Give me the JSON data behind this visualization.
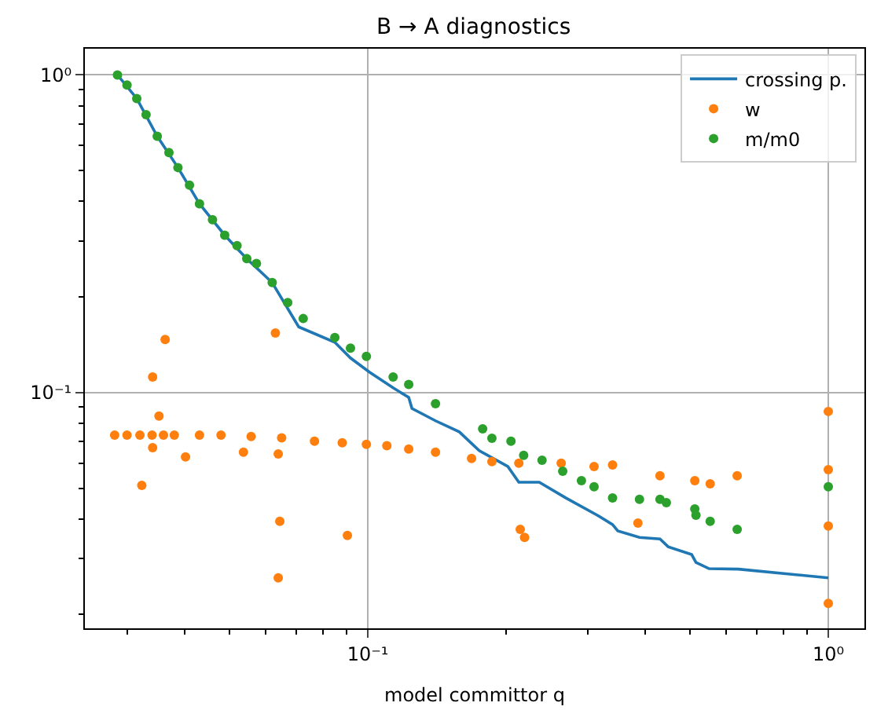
{
  "chart_data": {
    "type": "scatter",
    "title": "B → A diagnostics",
    "xlabel": "model committor q",
    "log": "xy",
    "grid": true,
    "legend": "top right",
    "xlim": [
      0.0243,
      1.198
    ],
    "ylim": [
      0.0181,
      1.21
    ],
    "xticks": [
      {
        "value": 0.1,
        "label": "10⁻¹"
      },
      {
        "value": 1,
        "label": "10⁰"
      },
      {
        "value": 0.03,
        "label": null
      },
      {
        "value": 0.04,
        "label": null
      },
      {
        "value": 0.05,
        "label": null
      },
      {
        "value": 0.06,
        "label": null
      },
      {
        "value": 0.07,
        "label": null
      },
      {
        "value": 0.08,
        "label": null
      },
      {
        "value": 0.09,
        "label": null
      },
      {
        "value": 0.2,
        "label": null
      },
      {
        "value": 0.3,
        "label": null
      },
      {
        "value": 0.4,
        "label": null
      },
      {
        "value": 0.5,
        "label": null
      },
      {
        "value": 0.6,
        "label": null
      },
      {
        "value": 0.7,
        "label": null
      },
      {
        "value": 0.8,
        "label": null
      },
      {
        "value": 0.9,
        "label": null
      }
    ],
    "yticks": [
      {
        "value": 0.1,
        "label": "10⁻¹"
      },
      {
        "value": 1,
        "label": "10⁰"
      },
      {
        "value": 0.02,
        "label": null
      },
      {
        "value": 0.03,
        "label": null
      },
      {
        "value": 0.04,
        "label": null
      },
      {
        "value": 0.05,
        "label": null
      },
      {
        "value": 0.06,
        "label": null
      },
      {
        "value": 0.07,
        "label": null
      },
      {
        "value": 0.08,
        "label": null
      },
      {
        "value": 0.09,
        "label": null
      },
      {
        "value": 0.2,
        "label": null
      },
      {
        "value": 0.3,
        "label": null
      },
      {
        "value": 0.4,
        "label": null
      },
      {
        "value": 0.5,
        "label": null
      },
      {
        "value": 0.6,
        "label": null
      },
      {
        "value": 0.7,
        "label": null
      },
      {
        "value": 0.8,
        "label": null
      },
      {
        "value": 0.9,
        "label": null
      }
    ],
    "series": [
      {
        "name": "crossing p.",
        "type": "line",
        "marker": "none",
        "line_style": "solid",
        "color": "#1f77b4",
        "x": [
          0.0286,
          0.0315,
          0.0349,
          0.0387,
          0.0431,
          0.0489,
          0.0546,
          0.062,
          0.0708,
          0.0848,
          0.0917,
          0.1008,
          0.1135,
          0.1227,
          0.1247,
          0.1403,
          0.158,
          0.1746,
          0.2014,
          0.2128,
          0.2357,
          0.269,
          0.315,
          0.34,
          0.349,
          0.389,
          0.431,
          0.449,
          0.505,
          0.516,
          0.551,
          0.638,
          1.0
        ],
        "values": [
          1.0,
          0.843,
          0.641,
          0.511,
          0.393,
          0.313,
          0.264,
          0.222,
          0.161,
          0.144,
          0.1285,
          0.116,
          0.1035,
          0.0966,
          0.0891,
          0.0815,
          0.0752,
          0.0656,
          0.0585,
          0.0522,
          0.0522,
          0.0466,
          0.0411,
          0.0384,
          0.0367,
          0.035,
          0.0346,
          0.0327,
          0.0309,
          0.0292,
          0.0279,
          0.0278,
          0.0261
        ]
      },
      {
        "name": "w",
        "marker": "circle",
        "color": "#ff7f0e",
        "x": [
          0.0282,
          0.03,
          0.032,
          0.034,
          0.036,
          0.038,
          0.0431,
          0.048,
          0.0558,
          0.065,
          0.0766,
          0.088,
          0.0993,
          0.11,
          0.1227,
          0.1403,
          0.168,
          0.186,
          0.2128,
          0.263,
          0.31,
          0.34,
          0.431,
          0.513,
          0.554,
          0.634,
          1.0,
          1.0,
          1.0,
          1.0,
          0.2143,
          0.219,
          0.386,
          0.0363,
          0.0341,
          0.0352,
          0.0341,
          0.0402,
          0.0323,
          0.0537,
          0.063,
          0.0639,
          0.0644,
          0.0903,
          0.0639
        ],
        "values": [
          0.0735,
          0.0735,
          0.0735,
          0.0735,
          0.0735,
          0.0735,
          0.0735,
          0.0735,
          0.0727,
          0.072,
          0.0703,
          0.0695,
          0.0687,
          0.068,
          0.0664,
          0.0649,
          0.062,
          0.0606,
          0.0599,
          0.0599,
          0.0585,
          0.0592,
          0.0547,
          0.0528,
          0.0516,
          0.0547,
          0.0872,
          0.0572,
          0.038,
          0.0217,
          0.0371,
          0.035,
          0.0388,
          0.147,
          0.112,
          0.0843,
          0.0671,
          0.0627,
          0.051,
          0.0649,
          0.154,
          0.0641,
          0.0393,
          0.0355,
          0.0261
        ]
      },
      {
        "name": "m/m0",
        "marker": "circle",
        "color": "#2ca02c",
        "x": [
          0.0286,
          0.03,
          0.0315,
          0.033,
          0.0349,
          0.037,
          0.0387,
          0.041,
          0.0431,
          0.046,
          0.0489,
          0.052,
          0.0546,
          0.0573,
          0.062,
          0.067,
          0.0724,
          0.0848,
          0.0917,
          0.0993,
          0.1135,
          0.1227,
          0.1403,
          0.1776,
          0.186,
          0.2046,
          0.218,
          0.239,
          0.265,
          0.291,
          0.31,
          0.34,
          0.389,
          0.431,
          0.445,
          0.513,
          0.516,
          0.554,
          0.634,
          1.0
        ],
        "values": [
          1.0,
          0.93,
          0.843,
          0.75,
          0.641,
          0.57,
          0.511,
          0.45,
          0.393,
          0.35,
          0.313,
          0.29,
          0.264,
          0.255,
          0.222,
          0.192,
          0.171,
          0.149,
          0.138,
          0.13,
          0.112,
          0.106,
          0.0923,
          0.0769,
          0.0718,
          0.0703,
          0.0634,
          0.0612,
          0.0565,
          0.0528,
          0.0505,
          0.0466,
          0.0461,
          0.0461,
          0.045,
          0.043,
          0.0411,
          0.0393,
          0.0371,
          0.0505
        ]
      }
    ]
  }
}
